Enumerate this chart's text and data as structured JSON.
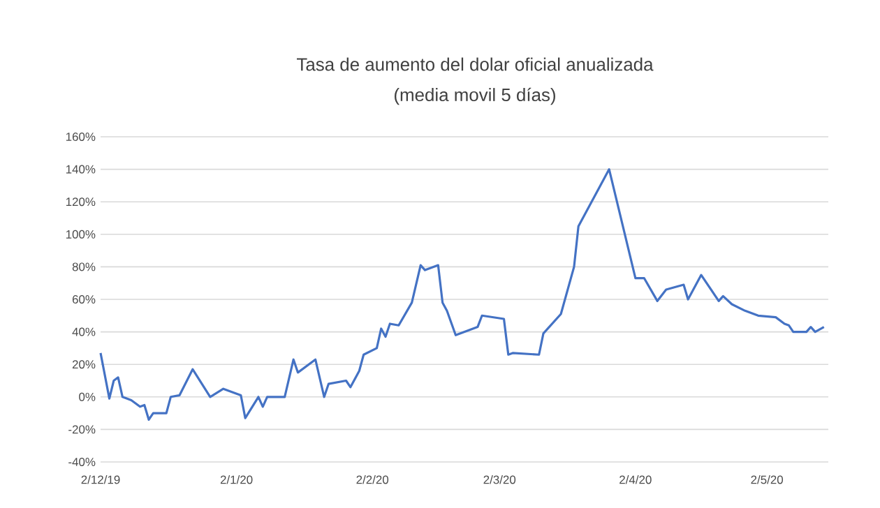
{
  "chart_data": {
    "type": "line",
    "title": "Tasa de aumento del dolar oficial anualizada",
    "subtitle": "(media movil 5 días)",
    "x": [
      "2019-12-02",
      "2019-12-04",
      "2019-12-05",
      "2019-12-06",
      "2019-12-07",
      "2019-12-09",
      "2019-12-11",
      "2019-12-12",
      "2019-12-13",
      "2019-12-14",
      "2019-12-17",
      "2019-12-18",
      "2019-12-20",
      "2019-12-23",
      "2019-12-27",
      "2019-12-30",
      "2020-01-03",
      "2020-01-04",
      "2020-01-07",
      "2020-01-08",
      "2020-01-09",
      "2020-01-13",
      "2020-01-15",
      "2020-01-16",
      "2020-01-20",
      "2020-01-22",
      "2020-01-23",
      "2020-01-27",
      "2020-01-28",
      "2020-01-30",
      "2020-01-31",
      "2020-02-03",
      "2020-02-04",
      "2020-02-05",
      "2020-02-06",
      "2020-02-08",
      "2020-02-11",
      "2020-02-13",
      "2020-02-14",
      "2020-02-17",
      "2020-02-18",
      "2020-02-19",
      "2020-02-21",
      "2020-02-26",
      "2020-02-27",
      "2020-03-03",
      "2020-03-04",
      "2020-03-05",
      "2020-03-11",
      "2020-03-12",
      "2020-03-16",
      "2020-03-19",
      "2020-03-20",
      "2020-03-27",
      "2020-04-02",
      "2020-04-04",
      "2020-04-07",
      "2020-04-09",
      "2020-04-13",
      "2020-04-14",
      "2020-04-17",
      "2020-04-21",
      "2020-04-22",
      "2020-04-24",
      "2020-04-27",
      "2020-04-30",
      "2020-05-04",
      "2020-05-06",
      "2020-05-07",
      "2020-05-08",
      "2020-05-11",
      "2020-05-12",
      "2020-05-13",
      "2020-05-15"
    ],
    "series": [
      {
        "color": "#4472c4",
        "values": [
          27,
          -1,
          10,
          12,
          0,
          -2,
          -6,
          -5,
          -14,
          -10,
          -10,
          0,
          1,
          17,
          0,
          5,
          1,
          -13,
          0,
          -6,
          0,
          0,
          23,
          15,
          23,
          0,
          8,
          10,
          6,
          16,
          26,
          30,
          42,
          37,
          45,
          44,
          58,
          81,
          78,
          81,
          58,
          53,
          38,
          43,
          50,
          48,
          26,
          27,
          26,
          39,
          51,
          80,
          105,
          140,
          73,
          73,
          59,
          66,
          69,
          60,
          75,
          59,
          62,
          57,
          53,
          50,
          49,
          45,
          44,
          40,
          40,
          43,
          40,
          43
        ]
      }
    ],
    "xlim": [
      "2019-12-02",
      "2020-05-16"
    ],
    "xticks": [
      {
        "value": "2019-12-02",
        "label": "2/12/19"
      },
      {
        "value": "2020-01-02",
        "label": "2/1/20"
      },
      {
        "value": "2020-02-02",
        "label": "2/2/20"
      },
      {
        "value": "2020-03-02",
        "label": "2/3/20"
      },
      {
        "value": "2020-04-02",
        "label": "2/4/20"
      },
      {
        "value": "2020-05-02",
        "label": "2/5/20"
      }
    ],
    "ylim": [
      -40,
      160
    ],
    "yticks": [
      {
        "value": -40,
        "label": "-40%"
      },
      {
        "value": -20,
        "label": "-20%"
      },
      {
        "value": 0,
        "label": "0%"
      },
      {
        "value": 20,
        "label": "20%"
      },
      {
        "value": 40,
        "label": "40%"
      },
      {
        "value": 60,
        "label": "60%"
      },
      {
        "value": 80,
        "label": "80%"
      },
      {
        "value": 100,
        "label": "100%"
      },
      {
        "value": 120,
        "label": "120%"
      },
      {
        "value": 140,
        "label": "140%"
      },
      {
        "value": 160,
        "label": "160%"
      }
    ],
    "grid": "y",
    "marker": "none",
    "line_style": "solid"
  }
}
